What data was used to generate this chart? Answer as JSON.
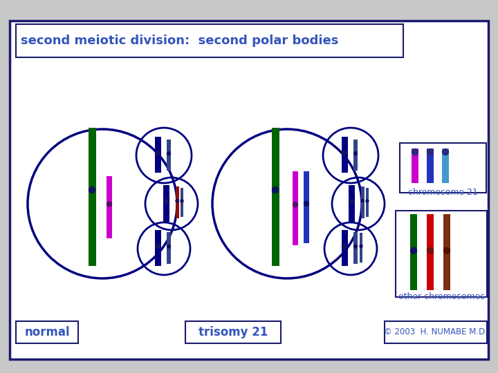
{
  "title": "second meiotic division:  second polar bodies",
  "bg_color": "#ffffff",
  "outer_bg": "#c8c8c8",
  "border_color": "#1a1a6e",
  "title_color": "#3355bb",
  "label_color": "#3355bb",
  "copyright": "© 2003  H. NUMABE M.D.",
  "normal_label": "normal",
  "trisomy_label": "trisomy 21",
  "chr21_label": "chromosome 21",
  "otherchr_label": "other chromosomes",
  "colors": {
    "dark_green": "#006400",
    "magenta": "#cc00cc",
    "dark_navy": "#000080",
    "blue": "#2233bb",
    "cyan_blue": "#4499cc",
    "red": "#cc0000",
    "brown": "#7a3010"
  }
}
